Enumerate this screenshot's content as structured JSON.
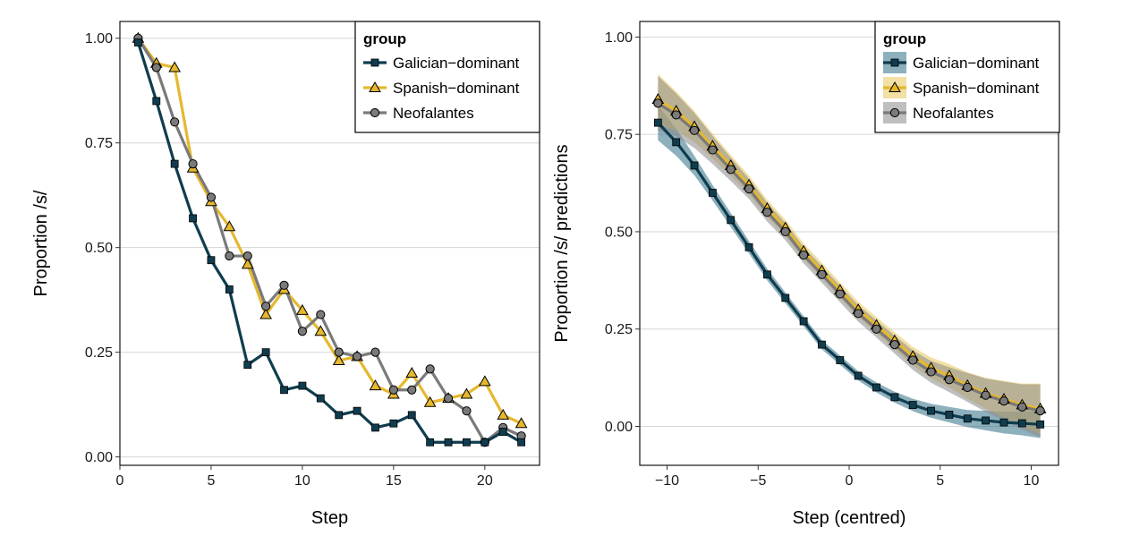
{
  "chart_data": [
    {
      "type": "line",
      "xlabel": "Step",
      "ylabel": "Proportion /s/",
      "xlim": [
        0,
        23
      ],
      "ylim": [
        -0.02,
        1.04
      ],
      "xticks": [
        0,
        5,
        10,
        15,
        20
      ],
      "yticks": [
        0.0,
        0.25,
        0.5,
        0.75,
        1.0
      ],
      "xtick_labels": [
        "0",
        "5",
        "10",
        "15",
        "20"
      ],
      "ytick_labels": [
        "0.00",
        "0.25",
        "0.50",
        "0.75",
        "1.00"
      ],
      "grid": "horizontal major",
      "legend": {
        "title": "group",
        "placement": "top-right",
        "entries": [
          "Galician−dominant",
          "Spanish−dominant",
          "Neofalantes"
        ]
      },
      "x": [
        1,
        2,
        3,
        4,
        5,
        6,
        7,
        8,
        9,
        10,
        11,
        12,
        13,
        14,
        15,
        16,
        17,
        18,
        19,
        20,
        21,
        22
      ],
      "series": [
        {
          "name": "Galician−dominant",
          "marker": "square",
          "color": "#0f3d4f",
          "values": [
            0.99,
            0.85,
            0.7,
            0.57,
            0.47,
            0.4,
            0.22,
            0.25,
            0.16,
            0.17,
            0.14,
            0.1,
            0.11,
            0.07,
            0.08,
            0.1,
            0.035,
            0.035,
            0.035,
            0.035,
            0.06,
            0.035
          ]
        },
        {
          "name": "Spanish−dominant",
          "marker": "triangle",
          "color": "#e5b82e",
          "values": [
            1.0,
            0.94,
            0.93,
            0.69,
            0.61,
            0.55,
            0.46,
            0.34,
            0.4,
            0.35,
            0.3,
            0.23,
            0.24,
            0.17,
            0.15,
            0.2,
            0.13,
            0.14,
            0.15,
            0.18,
            0.1,
            0.08
          ]
        },
        {
          "name": "Neofalantes",
          "marker": "circle",
          "color": "#7a7a7a",
          "values": [
            1.0,
            0.93,
            0.8,
            0.7,
            0.62,
            0.48,
            0.48,
            0.36,
            0.41,
            0.3,
            0.34,
            0.25,
            0.24,
            0.25,
            0.16,
            0.16,
            0.21,
            0.14,
            0.11,
            0.035,
            0.07,
            0.05
          ]
        }
      ]
    },
    {
      "type": "line",
      "xlabel": "Step (centred)",
      "ylabel": "Proportion /s/ predictions",
      "xlim": [
        -11.5,
        11.5
      ],
      "ylim": [
        -0.1,
        1.04
      ],
      "xticks": [
        -10,
        -5,
        0,
        5,
        10
      ],
      "yticks": [
        0.0,
        0.25,
        0.5,
        0.75,
        1.0
      ],
      "xtick_labels": [
        "−10",
        "−5",
        "0",
        "5",
        "10"
      ],
      "ytick_labels": [
        "0.00",
        "0.25",
        "0.50",
        "0.75",
        "1.00"
      ],
      "grid": "horizontal major",
      "legend": {
        "title": "group",
        "placement": "top-right",
        "entries": [
          "Galician−dominant",
          "Spanish−dominant",
          "Neofalantes"
        ]
      },
      "x": [
        -10.5,
        -9.5,
        -8.5,
        -7.5,
        -6.5,
        -5.5,
        -4.5,
        -3.5,
        -2.5,
        -1.5,
        -0.5,
        0.5,
        1.5,
        2.5,
        3.5,
        4.5,
        5.5,
        6.5,
        7.5,
        8.5,
        9.5,
        10.5
      ],
      "series": [
        {
          "name": "Galician−dominant",
          "marker": "square",
          "color": "#0f3d4f",
          "band_color": "#2f6f86",
          "values": [
            0.78,
            0.73,
            0.67,
            0.6,
            0.53,
            0.46,
            0.39,
            0.33,
            0.27,
            0.21,
            0.17,
            0.13,
            0.1,
            0.075,
            0.055,
            0.04,
            0.03,
            0.02,
            0.015,
            0.01,
            0.008,
            0.005
          ],
          "band": [
            0.045,
            0.035,
            0.025,
            0.02,
            0.018,
            0.016,
            0.015,
            0.014,
            0.013,
            0.012,
            0.012,
            0.012,
            0.013,
            0.014,
            0.016,
            0.018,
            0.02,
            0.022,
            0.025,
            0.028,
            0.031,
            0.035
          ]
        },
        {
          "name": "Spanish−dominant",
          "marker": "triangle",
          "color": "#e5b82e",
          "band_color": "#e8c65a",
          "values": [
            0.84,
            0.81,
            0.77,
            0.72,
            0.67,
            0.62,
            0.56,
            0.51,
            0.45,
            0.4,
            0.35,
            0.3,
            0.26,
            0.22,
            0.18,
            0.15,
            0.13,
            0.105,
            0.085,
            0.07,
            0.055,
            0.045
          ],
          "band": [
            0.065,
            0.05,
            0.04,
            0.032,
            0.027,
            0.024,
            0.022,
            0.021,
            0.02,
            0.02,
            0.02,
            0.02,
            0.021,
            0.022,
            0.024,
            0.027,
            0.03,
            0.034,
            0.04,
            0.047,
            0.055,
            0.065
          ]
        },
        {
          "name": "Neofalantes",
          "marker": "circle",
          "color": "#7a7a7a",
          "band_color": "#8a8a8a",
          "values": [
            0.83,
            0.8,
            0.76,
            0.71,
            0.66,
            0.61,
            0.55,
            0.5,
            0.44,
            0.39,
            0.34,
            0.29,
            0.25,
            0.21,
            0.17,
            0.14,
            0.12,
            0.1,
            0.08,
            0.065,
            0.05,
            0.04
          ],
          "band": [
            0.07,
            0.055,
            0.045,
            0.036,
            0.03,
            0.026,
            0.024,
            0.022,
            0.021,
            0.021,
            0.021,
            0.021,
            0.022,
            0.023,
            0.025,
            0.028,
            0.032,
            0.037,
            0.043,
            0.05,
            0.058,
            0.068
          ]
        }
      ]
    }
  ]
}
